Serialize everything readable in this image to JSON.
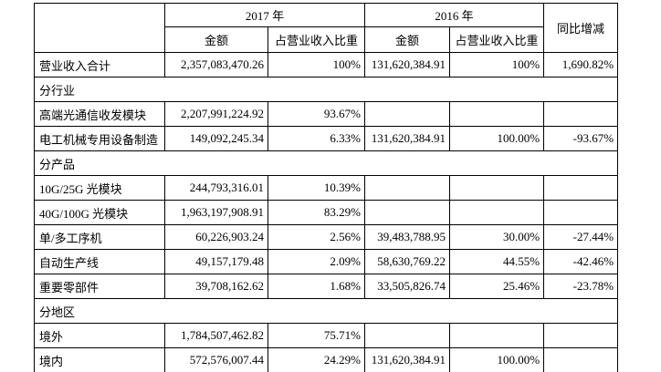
{
  "table": {
    "colors": {
      "shaded_bg": "#d3d3d3",
      "border": "#000000",
      "text": "#000000"
    },
    "header": {
      "corner": "",
      "year_2017": "2017 年",
      "year_2016": "2016 年",
      "yoy": "同比增减",
      "amount_2017": "金额",
      "proportion_2017": "占营业收入比重",
      "amount_2016": "金额",
      "proportion_2016": "占营业收入比重"
    },
    "rows": [
      {
        "type": "data",
        "label": "营业收入合计",
        "cells": [
          "2,357,083,470.26",
          "100%",
          "131,620,384.91",
          "100%",
          "1,690.82%"
        ],
        "shaded": [
          true,
          false,
          true,
          false,
          true,
          false
        ]
      },
      {
        "type": "section",
        "label": "分行业"
      },
      {
        "type": "data",
        "label": "高端光通信收发模块",
        "cells": [
          "2,207,991,224.92",
          "93.67%",
          "",
          "",
          ""
        ],
        "shaded": [
          false,
          false,
          false,
          false,
          false,
          false
        ]
      },
      {
        "type": "data",
        "label": "电工机械专用设备制造",
        "cells": [
          "149,092,245.34",
          "6.33%",
          "131,620,384.91",
          "100.00%",
          "-93.67%"
        ],
        "shaded": [
          false,
          false,
          false,
          false,
          false,
          false
        ]
      },
      {
        "type": "section",
        "label": "分产品"
      },
      {
        "type": "data",
        "label": "10G/25G 光模块",
        "cells": [
          "244,793,316.01",
          "10.39%",
          "",
          "",
          ""
        ],
        "shaded": [
          false,
          false,
          false,
          false,
          false,
          false
        ]
      },
      {
        "type": "data",
        "label": "40G/100G 光模块",
        "cells": [
          "1,963,197,908.91",
          "83.29%",
          "",
          "",
          ""
        ],
        "shaded": [
          false,
          false,
          false,
          false,
          false,
          false
        ]
      },
      {
        "type": "data",
        "label": "单/多工序机",
        "cells": [
          "60,226,903.24",
          "2.56%",
          "39,483,788.95",
          "30.00%",
          "-27.44%"
        ],
        "shaded": [
          false,
          false,
          false,
          false,
          false,
          false
        ]
      },
      {
        "type": "data",
        "label": "自动生产线",
        "cells": [
          "49,157,179.48",
          "2.09%",
          "58,630,769.22",
          "44.55%",
          "-42.46%"
        ],
        "shaded": [
          false,
          false,
          false,
          false,
          false,
          false
        ]
      },
      {
        "type": "data",
        "label": "重要零部件",
        "cells": [
          "39,708,162.62",
          "1.68%",
          "33,505,826.74",
          "25.46%",
          "-23.78%"
        ],
        "shaded": [
          false,
          false,
          false,
          false,
          false,
          false
        ]
      },
      {
        "type": "section",
        "label": "分地区"
      },
      {
        "type": "data",
        "label": "境外",
        "cells": [
          "1,784,507,462.82",
          "75.71%",
          "",
          "",
          ""
        ],
        "shaded": [
          false,
          false,
          false,
          false,
          false,
          false
        ]
      },
      {
        "type": "data",
        "label": "境内",
        "cells": [
          "572,576,007.44",
          "24.29%",
          "131,620,384.91",
          "100.00%",
          ""
        ],
        "shaded": [
          false,
          false,
          false,
          false,
          false,
          false
        ]
      }
    ]
  }
}
